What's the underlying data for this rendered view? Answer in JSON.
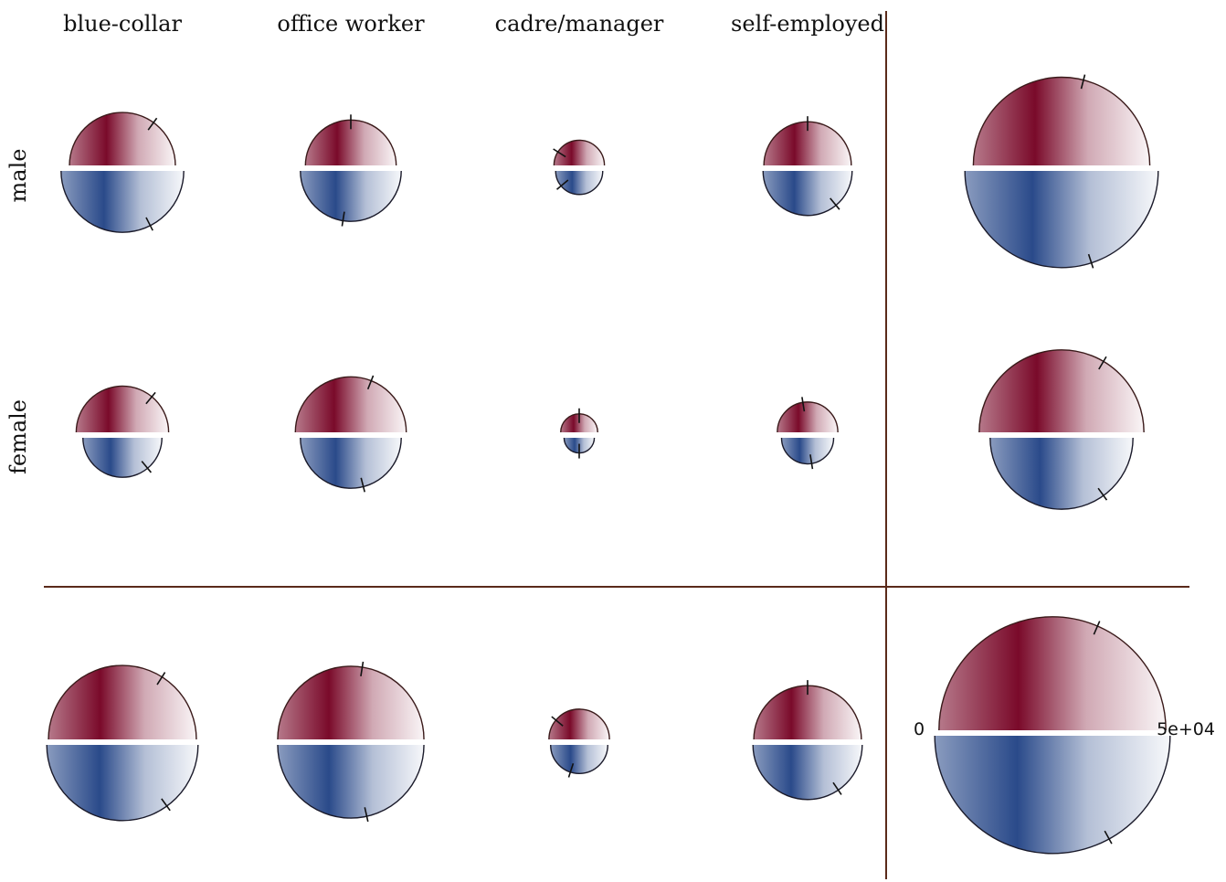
{
  "chart_data": {
    "type": "other",
    "description_kind": "grid of split semicircle glyphs (top half red, bottom half blue) with radius and tick marking values; right column and bottom row are margins",
    "columns": [
      "blue-collar",
      "office worker",
      "cadre/manager",
      "self-employed"
    ],
    "rows": [
      "male",
      "female"
    ],
    "scale": {
      "min_label": "0",
      "max_label": "5e+04"
    },
    "colors": {
      "top": "#7a0a2a",
      "bottom": "#2a4a8a",
      "divider": "#5a2a1a"
    },
    "cells": [
      {
        "row": "male",
        "col": "blue-collar",
        "top": 0.63,
        "bottom": 0.73,
        "top_tick": 0.7,
        "bottom_tick": 0.65
      },
      {
        "row": "male",
        "col": "office worker",
        "top": 0.54,
        "bottom": 0.6,
        "top_tick": 0.5,
        "bottom_tick": 0.45
      },
      {
        "row": "male",
        "col": "cadre/manager",
        "top": 0.3,
        "bottom": 0.28,
        "top_tick": 0.18,
        "bottom_tick": 0.22
      },
      {
        "row": "male",
        "col": "self-employed",
        "top": 0.52,
        "bottom": 0.53,
        "top_tick": 0.5,
        "bottom_tick": 0.72
      },
      {
        "row": "female",
        "col": "blue-collar",
        "top": 0.55,
        "bottom": 0.47,
        "top_tick": 0.72,
        "bottom_tick": 0.72
      },
      {
        "row": "female",
        "col": "office worker",
        "top": 0.66,
        "bottom": 0.6,
        "top_tick": 0.62,
        "bottom_tick": 0.58
      },
      {
        "row": "female",
        "col": "cadre/manager",
        "top": 0.22,
        "bottom": 0.18,
        "top_tick": 0.5,
        "bottom_tick": 0.5
      },
      {
        "row": "female",
        "col": "self-employed",
        "top": 0.36,
        "bottom": 0.31,
        "top_tick": 0.45,
        "bottom_tick": 0.55
      }
    ],
    "row_margins": [
      {
        "row": "male",
        "top": 1.05,
        "bottom": 1.15,
        "top_tick": 0.58,
        "bottom_tick": 0.6
      },
      {
        "row": "female",
        "top": 0.98,
        "bottom": 0.85,
        "top_tick": 0.67,
        "bottom_tick": 0.7
      }
    ],
    "col_margins": [
      {
        "col": "blue-collar",
        "top": 0.88,
        "bottom": 0.9,
        "top_tick": 0.68,
        "bottom_tick": 0.7
      },
      {
        "col": "office worker",
        "top": 0.87,
        "bottom": 0.87,
        "top_tick": 0.55,
        "bottom_tick": 0.57
      },
      {
        "col": "cadre/manager",
        "top": 0.36,
        "bottom": 0.34,
        "top_tick": 0.22,
        "bottom_tick": 0.4
      },
      {
        "col": "self-employed",
        "top": 0.64,
        "bottom": 0.65,
        "top_tick": 0.5,
        "bottom_tick": 0.69
      }
    ],
    "total": {
      "top": 1.35,
      "bottom": 1.4,
      "top_tick": 0.63,
      "bottom_tick": 0.66
    }
  }
}
